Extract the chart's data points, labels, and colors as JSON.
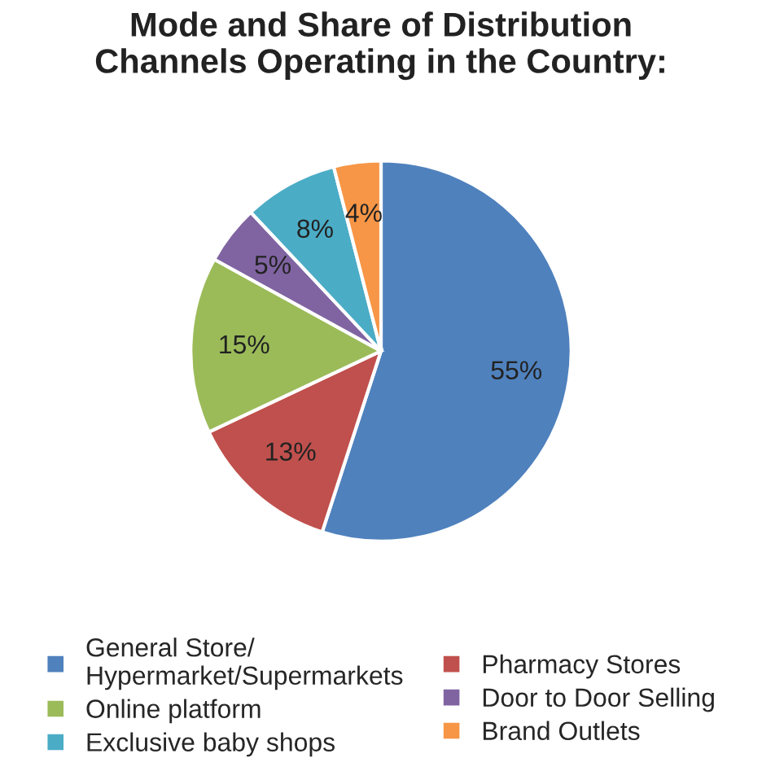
{
  "chart_data": {
    "type": "pie",
    "title": "Mode and Share of Distribution\nChannels Operating in the Country:",
    "categories": [
      "General Store/\nHypermarket/Supermarkets",
      "Pharmacy Stores",
      "Online platform",
      "Door to Door Selling",
      "Exclusive baby shops",
      "Brand Outlets"
    ],
    "values": [
      55,
      13,
      15,
      5,
      8,
      4
    ],
    "colors": [
      "#4f81bd",
      "#c0504d",
      "#9bbb59",
      "#8064a2",
      "#4bacc6",
      "#f79646"
    ],
    "value_labels": [
      "55%",
      "13%",
      "15%",
      "5%",
      "8%",
      "4%"
    ],
    "legend": "bottom"
  }
}
